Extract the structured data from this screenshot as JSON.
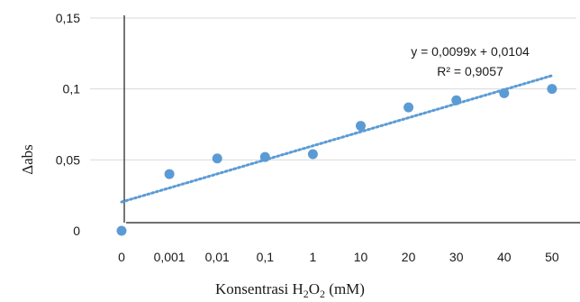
{
  "chart_data": {
    "type": "scatter",
    "title": "",
    "xlabel_parts": [
      "Konsentrasi H",
      "2",
      "O",
      "2",
      " (mM)"
    ],
    "ylabel": "Δabs",
    "categories": [
      "0",
      "0,001",
      "0,01",
      "0,1",
      "1",
      "10",
      "20",
      "30",
      "40",
      "50"
    ],
    "values": [
      0,
      0.04,
      0.051,
      0.052,
      0.054,
      0.074,
      0.087,
      0.092,
      0.097,
      0.1
    ],
    "ylim": [
      0,
      0.15
    ],
    "yticks": [
      {
        "value": 0,
        "label": "0"
      },
      {
        "value": 0.05,
        "label": "0,05"
      },
      {
        "value": 0.1,
        "label": "0,1"
      },
      {
        "value": 0.15,
        "label": "0,15"
      }
    ],
    "trendline": {
      "type": "linear",
      "slope": 0.0099,
      "intercept": 0.0104,
      "equation": "y = 0,0099x + 0,0104",
      "r_squared": "R² = 0,9057",
      "style": "dotted"
    },
    "grid": true,
    "legend": "none",
    "marker_color": "#5b9bd5",
    "trend_color": "#5b9bd5",
    "grid_color": "#d9d9d9",
    "axis_color": "#1a1a1a"
  }
}
